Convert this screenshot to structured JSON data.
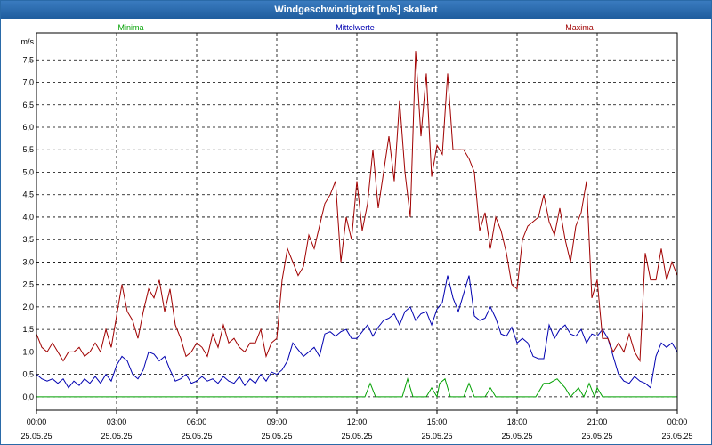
{
  "window": {
    "title": "Windgeschwindigkeit [m/s] skaliert"
  },
  "colors": {
    "min": "#00a000",
    "mean": "#0000b0",
    "max": "#a00000",
    "title_bg": "#2a6aa8"
  },
  "chart_data": {
    "type": "line",
    "title": "Windgeschwindigkeit [m/s] skaliert",
    "ylabel": "m/s",
    "ylim": [
      -0.3,
      8.1
    ],
    "xlim": [
      0,
      24
    ],
    "grid": true,
    "yticks": [
      "0,0",
      "0,5",
      "1,0",
      "1,5",
      "2,0",
      "2,5",
      "3,0",
      "3,5",
      "4,0",
      "4,5",
      "5,0",
      "5,5",
      "6,0",
      "6,5",
      "7,0",
      "7,5"
    ],
    "xticks": [
      {
        "time": "00:00",
        "date": "25.05.25"
      },
      {
        "time": "03:00",
        "date": "25.05.25"
      },
      {
        "time": "06:00",
        "date": "25.05.25"
      },
      {
        "time": "09:00",
        "date": "25.05.25"
      },
      {
        "time": "12:00",
        "date": "25.05.25"
      },
      {
        "time": "15:00",
        "date": "25.05.25"
      },
      {
        "time": "18:00",
        "date": "25.05.25"
      },
      {
        "time": "21:00",
        "date": "25.05.25"
      },
      {
        "time": "00:00",
        "date": "26.05.25"
      }
    ],
    "x_unit": "hours since 25.05.25 00:00",
    "series": [
      {
        "name": "Minima",
        "x": [
          0,
          12.3,
          12.5,
          12.7,
          13.7,
          13.9,
          14.1,
          14.6,
          14.8,
          15.0,
          15.1,
          15.3,
          15.5,
          16.0,
          16.2,
          16.4,
          16.8,
          17.0,
          17.2,
          18.7,
          19.0,
          19.2,
          19.5,
          19.8,
          20.0,
          20.3,
          20.5,
          20.7,
          20.9,
          21.0,
          21.2,
          24
        ],
        "y": [
          0.0,
          0.0,
          0.3,
          0.0,
          0.0,
          0.4,
          0.0,
          0.0,
          0.2,
          0.0,
          0.3,
          0.4,
          0.0,
          0.0,
          0.3,
          0.0,
          0.0,
          0.2,
          0.0,
          0.0,
          0.3,
          0.3,
          0.4,
          0.2,
          0.0,
          0.2,
          0.0,
          0.3,
          0.0,
          0.2,
          0.0,
          0.0
        ]
      },
      {
        "name": "Mittelwerte",
        "x": [
          0,
          0.2,
          0.4,
          0.6,
          0.8,
          1.0,
          1.2,
          1.4,
          1.6,
          1.8,
          2.0,
          2.2,
          2.4,
          2.6,
          2.8,
          3.0,
          3.2,
          3.4,
          3.6,
          3.8,
          4.0,
          4.2,
          4.4,
          4.6,
          4.8,
          5.0,
          5.2,
          5.4,
          5.6,
          5.8,
          6.0,
          6.2,
          6.4,
          6.6,
          6.8,
          7.0,
          7.2,
          7.4,
          7.6,
          7.8,
          8.0,
          8.2,
          8.4,
          8.6,
          8.8,
          9.0,
          9.2,
          9.4,
          9.6,
          9.8,
          10.0,
          10.2,
          10.4,
          10.6,
          10.8,
          11.0,
          11.2,
          11.4,
          11.6,
          11.8,
          12.0,
          12.2,
          12.4,
          12.6,
          12.8,
          13.0,
          13.2,
          13.4,
          13.6,
          13.8,
          14.0,
          14.2,
          14.4,
          14.6,
          14.8,
          15.0,
          15.2,
          15.4,
          15.6,
          15.8,
          16.0,
          16.2,
          16.4,
          16.6,
          16.8,
          17.0,
          17.2,
          17.4,
          17.6,
          17.8,
          18.0,
          18.2,
          18.4,
          18.6,
          18.8,
          19.0,
          19.2,
          19.4,
          19.6,
          19.8,
          20.0,
          20.2,
          20.4,
          20.6,
          20.8,
          21.0,
          21.2,
          21.4,
          21.6,
          21.8,
          22.0,
          22.2,
          22.4,
          22.6,
          22.8,
          23.0,
          23.2,
          23.4,
          23.6,
          23.8,
          24.0
        ],
        "y": [
          0.5,
          0.4,
          0.35,
          0.4,
          0.3,
          0.4,
          0.2,
          0.35,
          0.25,
          0.4,
          0.3,
          0.45,
          0.3,
          0.5,
          0.35,
          0.7,
          0.9,
          0.8,
          0.5,
          0.4,
          0.6,
          1.0,
          0.95,
          0.8,
          0.9,
          0.6,
          0.35,
          0.4,
          0.5,
          0.3,
          0.35,
          0.45,
          0.35,
          0.4,
          0.3,
          0.45,
          0.35,
          0.3,
          0.45,
          0.25,
          0.4,
          0.3,
          0.5,
          0.35,
          0.55,
          0.5,
          0.6,
          0.8,
          1.2,
          1.05,
          0.9,
          1.0,
          1.1,
          0.9,
          1.4,
          1.45,
          1.35,
          1.45,
          1.5,
          1.3,
          1.3,
          1.45,
          1.6,
          1.35,
          1.55,
          1.7,
          1.75,
          1.85,
          1.6,
          1.9,
          2.0,
          1.7,
          1.85,
          1.9,
          1.6,
          1.95,
          2.1,
          2.7,
          2.2,
          1.9,
          2.3,
          2.7,
          1.8,
          1.7,
          1.75,
          2.0,
          1.75,
          1.4,
          1.35,
          1.55,
          1.2,
          1.3,
          1.2,
          0.9,
          0.85,
          0.85,
          1.6,
          1.3,
          1.5,
          1.6,
          1.4,
          1.35,
          1.5,
          1.2,
          1.4,
          1.35,
          1.5,
          1.3,
          0.9,
          0.5,
          0.35,
          0.3,
          0.45,
          0.35,
          0.3,
          0.2,
          0.9,
          1.2,
          1.1,
          1.2,
          1.0
        ]
      },
      {
        "name": "Maxima",
        "x": [
          0,
          0.2,
          0.4,
          0.6,
          0.8,
          1.0,
          1.2,
          1.4,
          1.6,
          1.8,
          2.0,
          2.2,
          2.4,
          2.6,
          2.8,
          3.0,
          3.2,
          3.4,
          3.6,
          3.8,
          4.0,
          4.2,
          4.4,
          4.6,
          4.8,
          5.0,
          5.2,
          5.4,
          5.6,
          5.8,
          6.0,
          6.2,
          6.4,
          6.6,
          6.8,
          7.0,
          7.2,
          7.4,
          7.6,
          7.8,
          8.0,
          8.2,
          8.4,
          8.6,
          8.8,
          9.0,
          9.2,
          9.4,
          9.6,
          9.8,
          10.0,
          10.2,
          10.4,
          10.6,
          10.8,
          11.0,
          11.2,
          11.4,
          11.6,
          11.8,
          12.0,
          12.2,
          12.4,
          12.6,
          12.8,
          13.0,
          13.2,
          13.4,
          13.6,
          13.8,
          14.0,
          14.2,
          14.4,
          14.6,
          14.8,
          15.0,
          15.2,
          15.4,
          15.6,
          15.8,
          16.0,
          16.2,
          16.4,
          16.6,
          16.8,
          17.0,
          17.2,
          17.4,
          17.6,
          17.8,
          18.0,
          18.2,
          18.4,
          18.6,
          18.8,
          19.0,
          19.2,
          19.4,
          19.6,
          19.8,
          20.0,
          20.2,
          20.4,
          20.6,
          20.8,
          21.0,
          21.2,
          21.4,
          21.6,
          21.8,
          22.0,
          22.2,
          22.4,
          22.6,
          22.8,
          23.0,
          23.2,
          23.4,
          23.6,
          23.8,
          24.0
        ],
        "y": [
          1.4,
          1.1,
          1.0,
          1.2,
          1.0,
          0.8,
          1.0,
          1.0,
          1.1,
          0.9,
          1.0,
          1.2,
          1.0,
          1.5,
          1.1,
          1.8,
          2.5,
          1.9,
          1.7,
          1.3,
          1.9,
          2.4,
          2.2,
          2.6,
          1.9,
          2.4,
          1.6,
          1.3,
          0.9,
          1.0,
          1.2,
          1.1,
          0.9,
          1.4,
          1.1,
          1.6,
          1.2,
          1.3,
          1.1,
          1.0,
          1.2,
          1.2,
          1.5,
          0.9,
          1.2,
          1.3,
          2.6,
          3.3,
          3.0,
          2.7,
          2.9,
          3.6,
          3.3,
          3.8,
          4.3,
          4.5,
          4.8,
          3.0,
          4.0,
          3.5,
          4.8,
          3.7,
          4.3,
          5.5,
          4.2,
          5.0,
          5.8,
          4.8,
          6.6,
          5.0,
          4.0,
          7.7,
          5.8,
          7.2,
          4.9,
          5.6,
          5.4,
          7.2,
          5.5,
          5.5,
          5.5,
          5.3,
          5.0,
          3.7,
          4.1,
          3.3,
          4.0,
          3.7,
          3.2,
          2.5,
          2.4,
          3.5,
          3.8,
          3.9,
          4.0,
          4.5,
          3.9,
          3.6,
          4.2,
          3.5,
          3.0,
          3.8,
          4.1,
          4.8,
          2.2,
          2.6,
          1.3,
          1.3,
          1.0,
          1.2,
          1.0,
          1.4,
          1.0,
          0.8,
          3.2,
          2.6,
          2.6,
          3.3,
          2.6,
          3.0,
          2.7
        ]
      }
    ]
  }
}
